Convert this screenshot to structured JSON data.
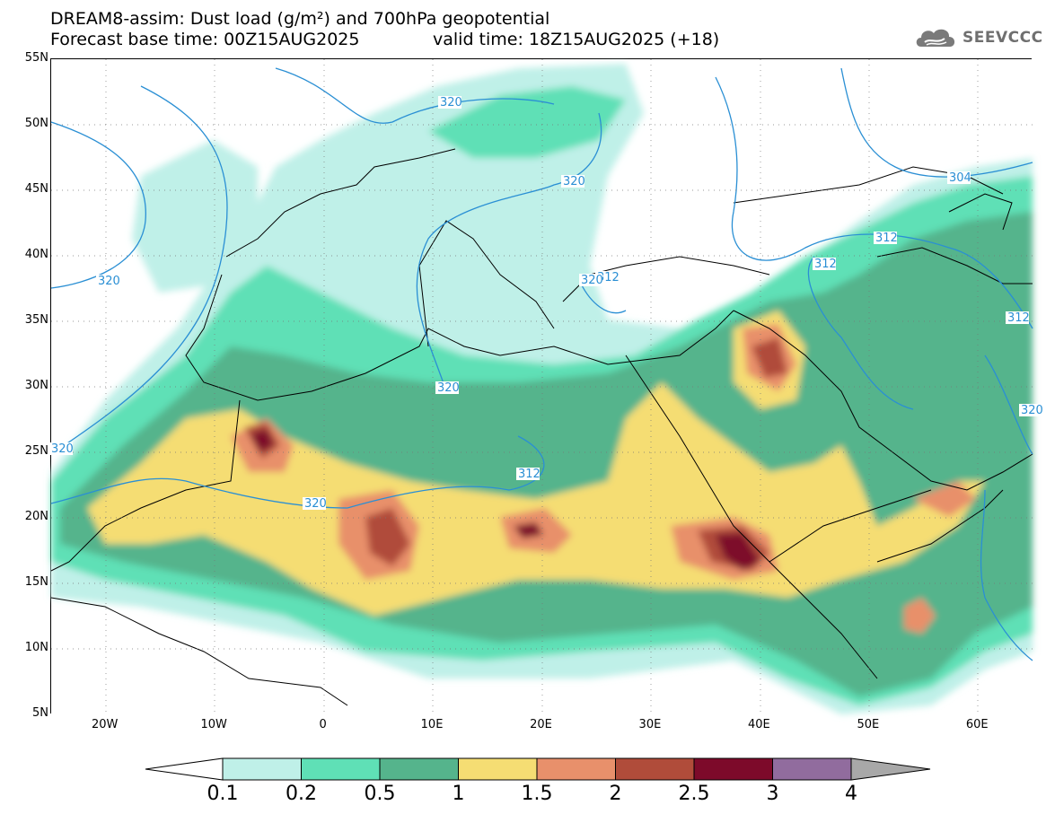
{
  "header": {
    "title_line1": "DREAM8-assim: Dust load (g/m²) and 700hPa geopotential",
    "forecast_base": "Forecast base time: 00Z15AUG2025",
    "valid_time": "valid time: 18Z15AUG2025 (+18)",
    "logo_text": "SEEVCCC",
    "logo_icon": "cloud-logo-icon"
  },
  "axes": {
    "latitudes": [
      "55N",
      "50N",
      "45N",
      "40N",
      "35N",
      "30N",
      "25N",
      "20N",
      "15N",
      "10N",
      "5N"
    ],
    "longitudes": [
      "20W",
      "10W",
      "0",
      "10E",
      "20E",
      "30E",
      "40E",
      "50E",
      "60E"
    ]
  },
  "map": {
    "lat_range": [
      5,
      55
    ],
    "lon_range": [
      -25,
      65
    ],
    "geopotential_labels": [
      "320",
      "320",
      "320",
      "320",
      "320",
      "312",
      "312",
      "312",
      "312",
      "304",
      "312",
      "320",
      "320",
      "320"
    ]
  },
  "colorbar": {
    "ticks": [
      "0.1",
      "0.2",
      "0.5",
      "1",
      "1.5",
      "2",
      "2.5",
      "3",
      "4"
    ],
    "colors": {
      "c01": "#bff0e8",
      "c02": "#5fe0b6",
      "c05": "#55b48c",
      "c10": "#f5dd73",
      "c15": "#e8906b",
      "c20": "#b04c3a",
      "c25": "#7d0a2a",
      "c30": "#916c9e",
      "c40": "#a8a8a8"
    }
  }
}
